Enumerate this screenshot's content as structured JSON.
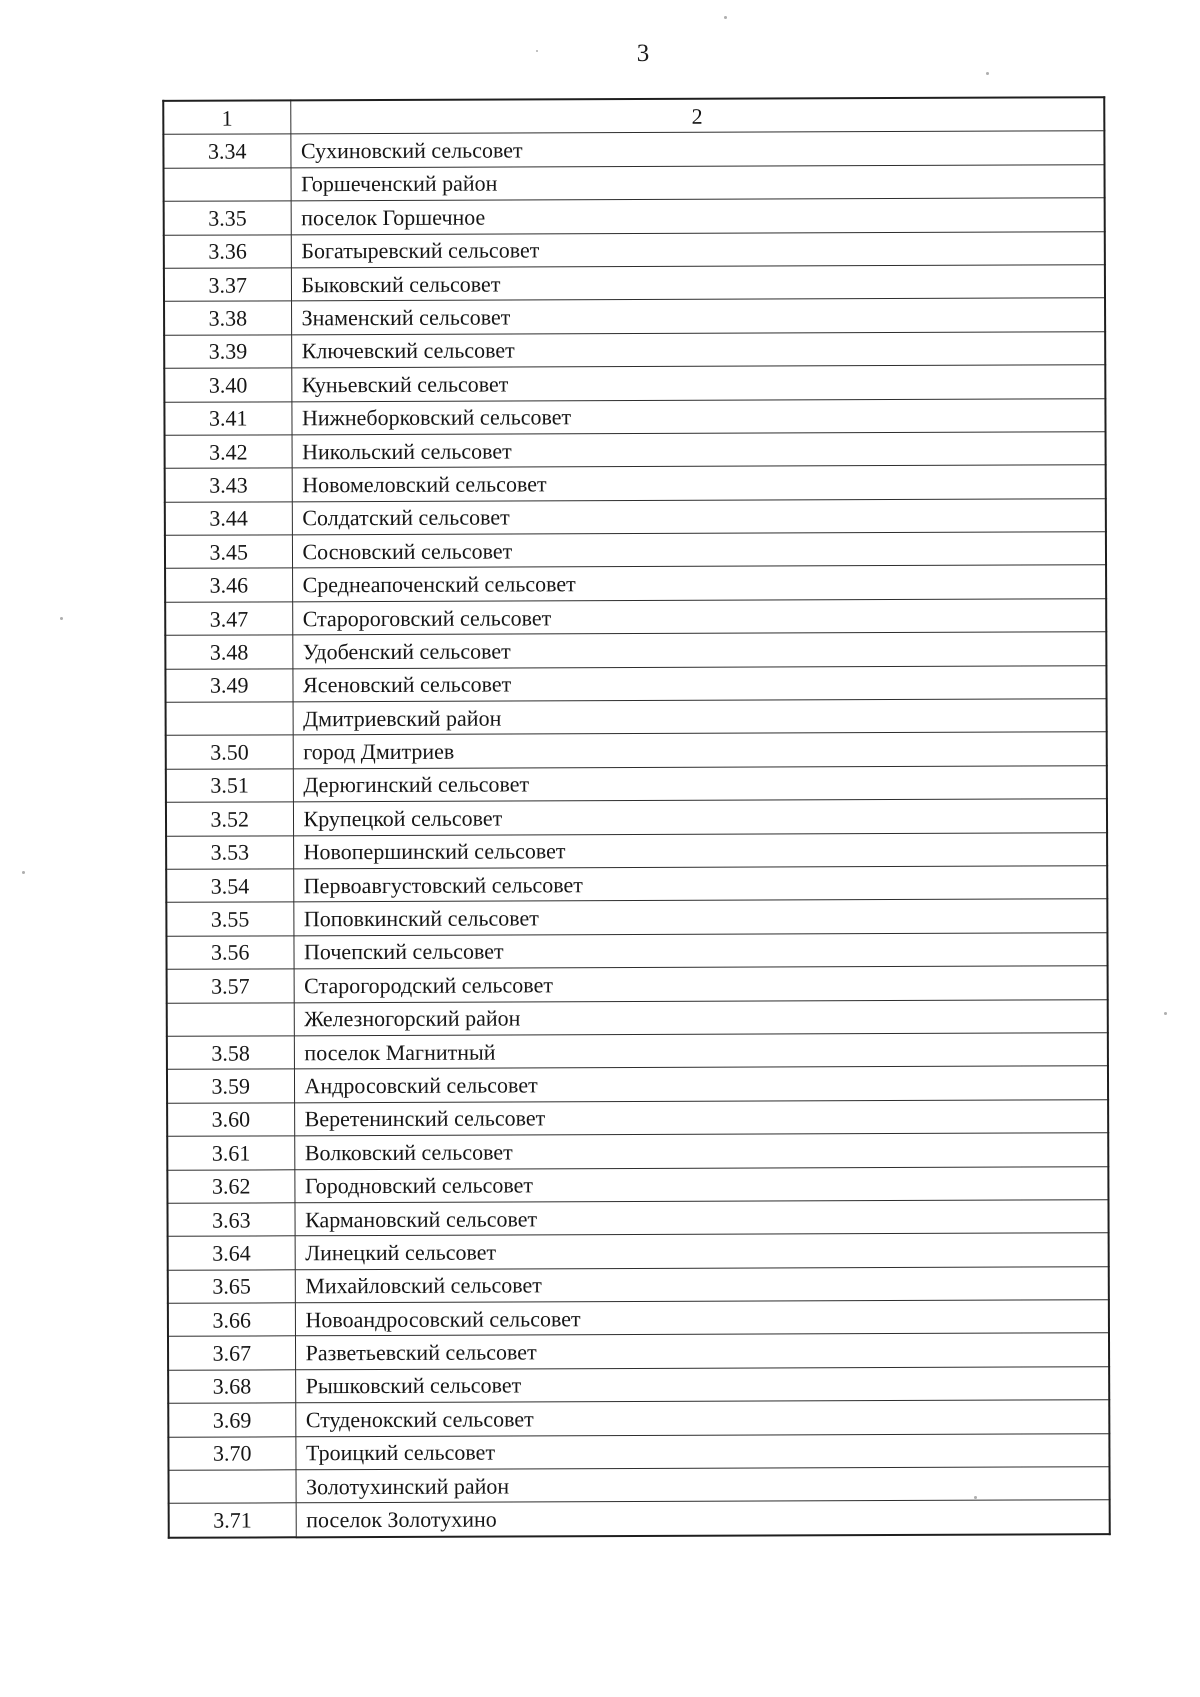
{
  "page": {
    "number": "3",
    "paper_color": "#ffffff",
    "ink_color": "#161616"
  },
  "table": {
    "headers": [
      "1",
      "2"
    ],
    "rows": [
      {
        "num": "3.34",
        "name": "Сухиновский сельсовет",
        "type": "item"
      },
      {
        "num": "",
        "name": "Горшеченский район",
        "type": "district"
      },
      {
        "num": "3.35",
        "name": "поселок Горшечное",
        "type": "item"
      },
      {
        "num": "3.36",
        "name": "Богатыревский сельсовет",
        "type": "item"
      },
      {
        "num": "3.37",
        "name": "Быковский сельсовет",
        "type": "item"
      },
      {
        "num": "3.38",
        "name": "Знаменский сельсовет",
        "type": "item"
      },
      {
        "num": "3.39",
        "name": "Ключевский сельсовет",
        "type": "item"
      },
      {
        "num": "3.40",
        "name": "Куньевский сельсовет",
        "type": "item"
      },
      {
        "num": "3.41",
        "name": "Нижнеборковский сельсовет",
        "type": "item"
      },
      {
        "num": "3.42",
        "name": "Никольский сельсовет",
        "type": "item"
      },
      {
        "num": "3.43",
        "name": "Новомеловский сельсовет",
        "type": "item"
      },
      {
        "num": "3.44",
        "name": "Солдатский сельсовет",
        "type": "item"
      },
      {
        "num": "3.45",
        "name": "Сосновский сельсовет",
        "type": "item"
      },
      {
        "num": "3.46",
        "name": "Среднеапоченский сельсовет",
        "type": "item"
      },
      {
        "num": "3.47",
        "name": "Старороговский  сельсовет",
        "type": "item"
      },
      {
        "num": "3.48",
        "name": "Удобенский сельсовет",
        "type": "item"
      },
      {
        "num": "3.49",
        "name": "Ясеновский сельсовет",
        "type": "item"
      },
      {
        "num": "",
        "name": "Дмитриевский район",
        "type": "district"
      },
      {
        "num": "3.50",
        "name": "город Дмитриев",
        "type": "item"
      },
      {
        "num": "3.51",
        "name": "Дерюгинский сельсовет",
        "type": "item"
      },
      {
        "num": "3.52",
        "name": "Крупецкой сельсовет",
        "type": "item"
      },
      {
        "num": "3.53",
        "name": "Новопершинский сельсовет",
        "type": "item"
      },
      {
        "num": "3.54",
        "name": "Первоавгустовский сельсовет",
        "type": "item"
      },
      {
        "num": "3.55",
        "name": "Поповкинский сельсовет",
        "type": "item"
      },
      {
        "num": "3.56",
        "name": "Почепский сельсовет",
        "type": "item"
      },
      {
        "num": "3.57",
        "name": "Старогородский сельсовет",
        "type": "item"
      },
      {
        "num": "",
        "name": "Железногорский район",
        "type": "district"
      },
      {
        "num": "3.58",
        "name": "поселок Магнитный",
        "type": "item"
      },
      {
        "num": "3.59",
        "name": "Андросовский сельсовет",
        "type": "item"
      },
      {
        "num": "3.60",
        "name": "Веретенинский сельсовет",
        "type": "item"
      },
      {
        "num": "3.61",
        "name": "Волковский сельсовет",
        "type": "item"
      },
      {
        "num": "3.62",
        "name": "Городновский сельсовет",
        "type": "item"
      },
      {
        "num": "3.63",
        "name": "Кармановский сельсовет",
        "type": "item"
      },
      {
        "num": "3.64",
        "name": "Линецкий сельсовет",
        "type": "item"
      },
      {
        "num": "3.65",
        "name": "Михайловский сельсовет",
        "type": "item"
      },
      {
        "num": "3.66",
        "name": "Новоандросовский сельсовет",
        "type": "item"
      },
      {
        "num": "3.67",
        "name": "Разветьевский сельсовет",
        "type": "item"
      },
      {
        "num": "3.68",
        "name": "Рышковский сельсовет",
        "type": "item"
      },
      {
        "num": "3.69",
        "name": "Студенокский сельсовет",
        "type": "item"
      },
      {
        "num": "3.70",
        "name": "Троицкий сельсовет",
        "type": "item"
      },
      {
        "num": "",
        "name": "Золотухинский район",
        "type": "district"
      },
      {
        "num": "3.71",
        "name": "поселок Золотухино",
        "type": "item"
      }
    ]
  }
}
